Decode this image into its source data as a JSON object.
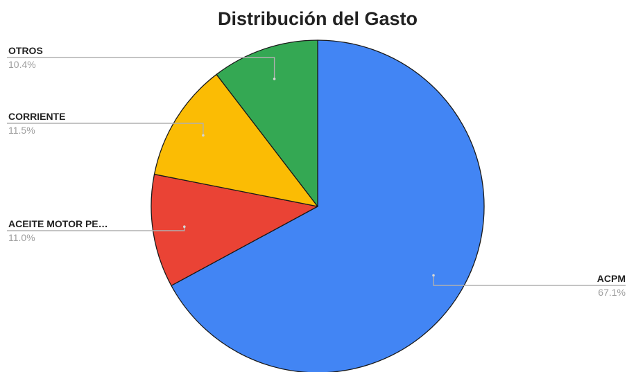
{
  "chart_data": {
    "type": "pie",
    "title": "Distribución del Gasto",
    "slices": [
      {
        "label": "ACPM",
        "value": 67.1,
        "display": "67.1%",
        "color": "#4285f4"
      },
      {
        "label": "ACEITE MOTOR PE…",
        "value": 11.0,
        "display": "11.0%",
        "color": "#ea4335"
      },
      {
        "label": "CORRIENTE",
        "value": 11.5,
        "display": "11.5%",
        "color": "#fbbc04"
      },
      {
        "label": "OTROS",
        "value": 10.4,
        "display": "10.4%",
        "color": "#34a853"
      }
    ],
    "legend": "none",
    "start_angle": "top, clockwise"
  }
}
